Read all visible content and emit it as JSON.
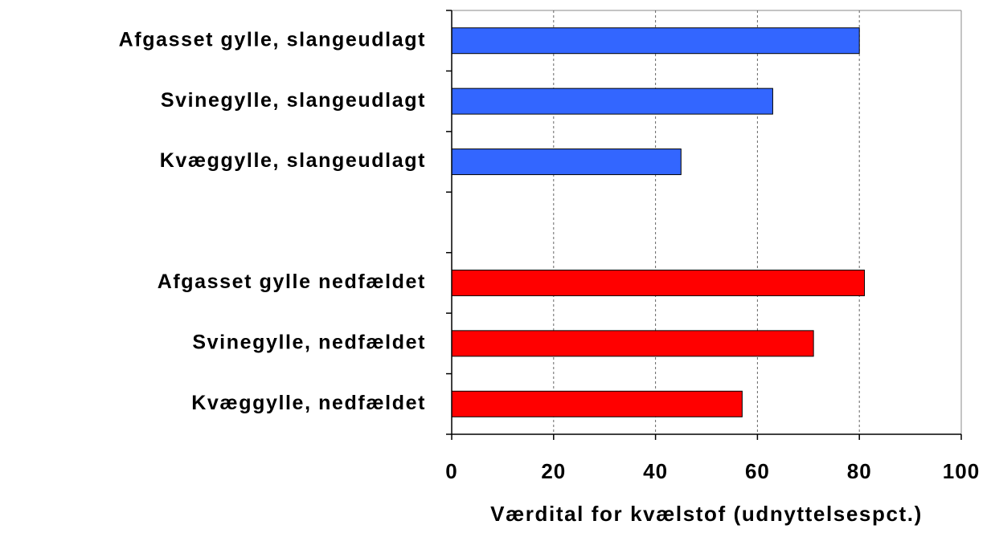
{
  "chart_data": {
    "type": "barh",
    "categories": [
      "Afgasset gylle, slangeudlagt",
      "Svinegylle, slangeudlagt",
      "Kvæggylle, slangeudlagt",
      null,
      "Afgasset gylle nedfældet",
      "Svinegylle, nedfældet",
      "Kvæggylle, nedfældet"
    ],
    "values": [
      80,
      63,
      45,
      null,
      81,
      71,
      57
    ],
    "colors": [
      "#3366ff",
      "#3366ff",
      "#3366ff",
      null,
      "#ff0000",
      "#ff0000",
      "#ff0000"
    ],
    "xlabel": "Værdital for kvælstof (udnyttelsespct.)",
    "xlim": [
      0,
      100
    ],
    "xticks": [
      0,
      20,
      40,
      60,
      80,
      100
    ],
    "grid": true
  }
}
